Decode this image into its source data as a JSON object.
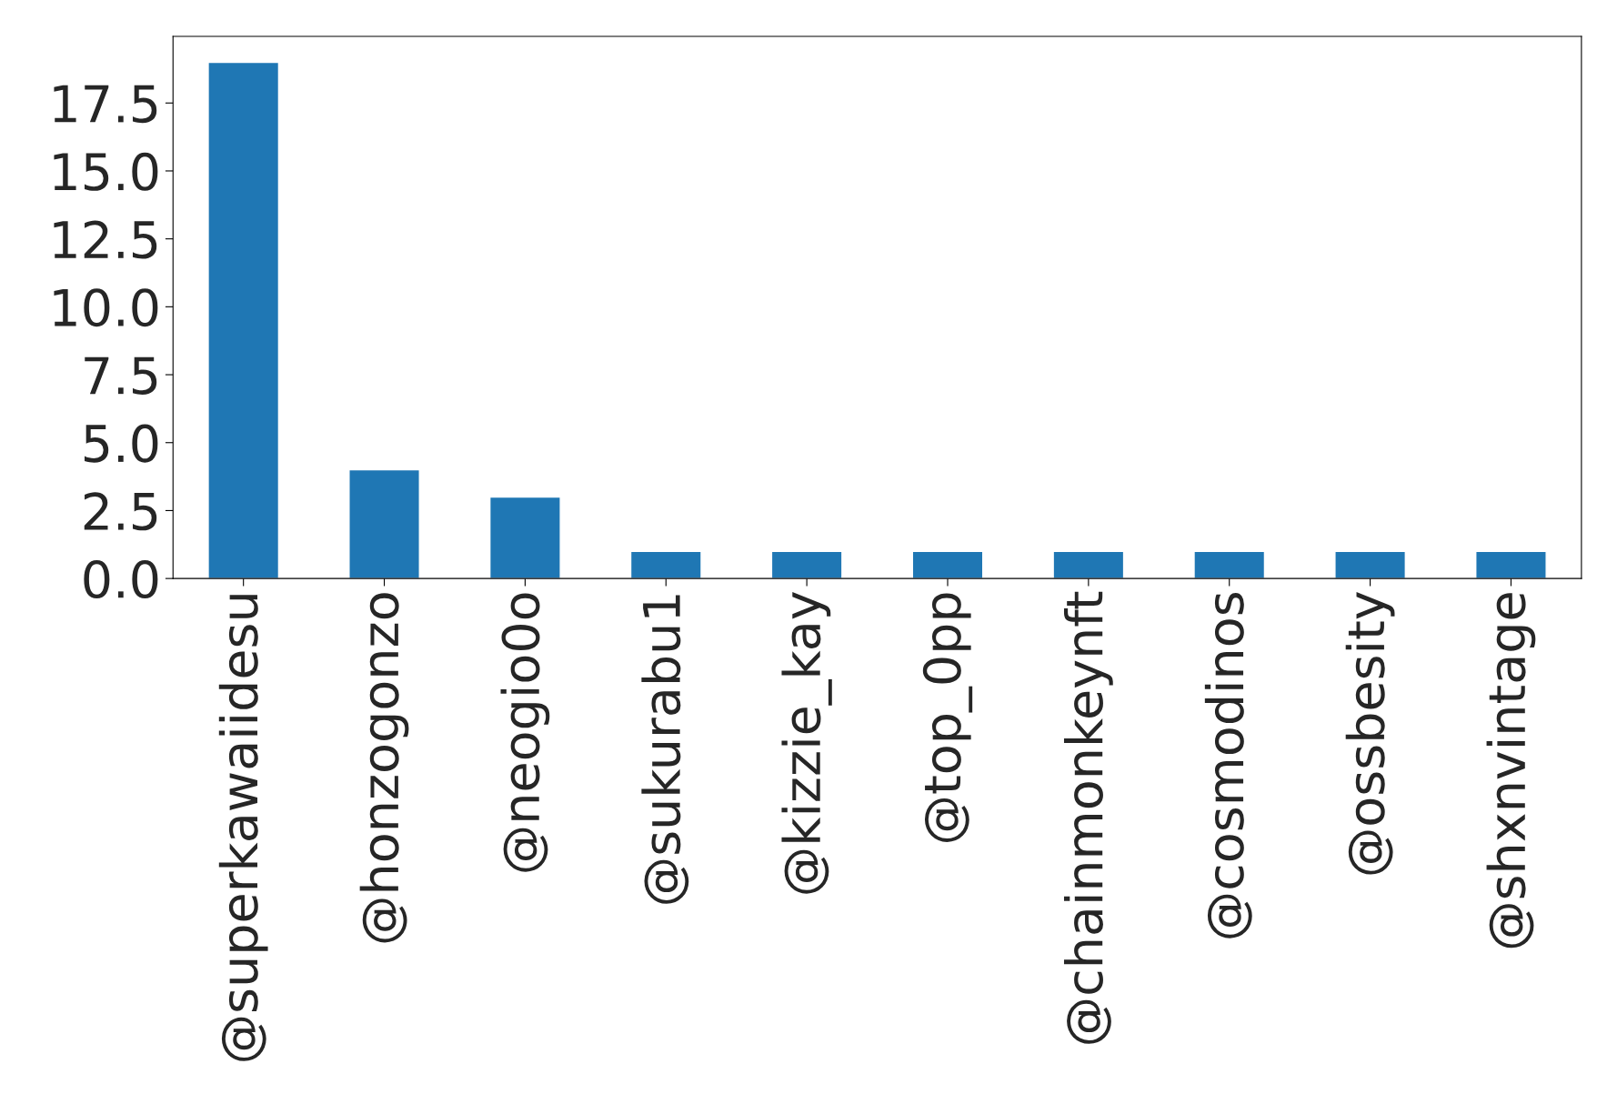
{
  "chart_data": {
    "type": "bar",
    "categories": [
      "@superkawaiidesu",
      "@honzogonzo",
      "@neogio0o",
      "@sukurabu1",
      "@kizzie_kay",
      "@top_0pp",
      "@chainmonkeynft",
      "@cosmodinos",
      "@ossbesity",
      "@shxnvintage"
    ],
    "values": [
      19,
      4,
      3,
      1,
      1,
      1,
      1,
      1,
      1,
      1
    ],
    "color": "#1f77b4",
    "ylim": [
      0,
      19.95
    ],
    "yticks": [
      {
        "value": 0,
        "label": "0.0"
      },
      {
        "value": 2.5,
        "label": "2.5"
      },
      {
        "value": 5,
        "label": "5.0"
      },
      {
        "value": 7.5,
        "label": "7.5"
      },
      {
        "value": 10,
        "label": "10.0"
      },
      {
        "value": 12.5,
        "label": "12.5"
      },
      {
        "value": 15,
        "label": "15.0"
      },
      {
        "value": 17.5,
        "label": "17.5"
      }
    ]
  }
}
